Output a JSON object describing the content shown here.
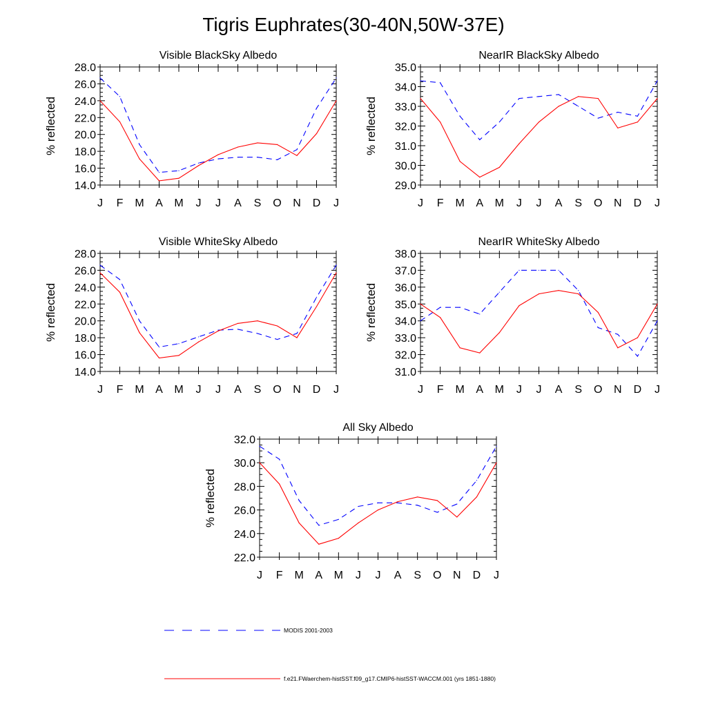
{
  "figure": {
    "title": "Tigris Euphrates(30-40N,50W-37E)"
  },
  "legend": {
    "entries": [
      {
        "label": "MODIS 2001-2003",
        "color": "#0000ff",
        "style": "dashed"
      },
      {
        "label": "f.e21.FWaerchem-histSST.f09_g17.CMIP6-histSST-WACCM.001 (yrs 1851-1880)",
        "color": "#ff0000",
        "style": "solid"
      }
    ]
  },
  "chart_data": [
    {
      "type": "line",
      "title": "Visible BlackSky Albedo",
      "ylabel": "% reflected",
      "xlabel": "",
      "categories": [
        "J",
        "F",
        "M",
        "A",
        "M",
        "J",
        "J",
        "A",
        "S",
        "O",
        "N",
        "D",
        "J"
      ],
      "ylim": [
        14,
        28
      ],
      "yticks": [
        "14.0",
        "16.0",
        "18.0",
        "20.0",
        "22.0",
        "24.0",
        "26.0",
        "28.0"
      ],
      "series": [
        {
          "name": "MODIS 2001-2003",
          "color": "#0000ff",
          "dash": true,
          "values": [
            26.7,
            24.5,
            18.8,
            15.5,
            15.7,
            16.6,
            17.1,
            17.3,
            17.3,
            17.0,
            18.2,
            23.1,
            26.7
          ]
        },
        {
          "name": "f.e21.FWaerchem-histSST.f09_g17.CMIP6-histSST-WACCM.001 (yrs 1851-1880)",
          "color": "#ff0000",
          "dash": false,
          "values": [
            24.0,
            21.5,
            17.1,
            14.5,
            14.8,
            16.3,
            17.6,
            18.5,
            19.0,
            18.8,
            17.5,
            20.1,
            24.0
          ]
        }
      ]
    },
    {
      "type": "line",
      "title": "NearIR BlackSky Albedo",
      "ylabel": "% reflected",
      "xlabel": "",
      "categories": [
        "J",
        "F",
        "M",
        "A",
        "M",
        "J",
        "J",
        "A",
        "S",
        "O",
        "N",
        "D",
        "J"
      ],
      "ylim": [
        29,
        35
      ],
      "yticks": [
        "29.0",
        "30.0",
        "31.0",
        "32.0",
        "33.0",
        "34.0",
        "35.0"
      ],
      "series": [
        {
          "name": "MODIS 2001-2003",
          "color": "#0000ff",
          "dash": true,
          "values": [
            34.3,
            34.2,
            32.5,
            31.3,
            32.2,
            33.4,
            33.5,
            33.6,
            33.0,
            32.4,
            32.7,
            32.5,
            34.3
          ]
        },
        {
          "name": "f.e21.FWaerchem-histSST.f09_g17.CMIP6-histSST-WACCM.001 (yrs 1851-1880)",
          "color": "#ff0000",
          "dash": false,
          "values": [
            33.4,
            32.2,
            30.2,
            29.4,
            29.9,
            31.1,
            32.2,
            33.0,
            33.5,
            33.4,
            31.9,
            32.2,
            33.4
          ]
        }
      ]
    },
    {
      "type": "line",
      "title": "Visible WhiteSky Albedo",
      "ylabel": "% reflected",
      "xlabel": "",
      "categories": [
        "J",
        "F",
        "M",
        "A",
        "M",
        "J",
        "J",
        "A",
        "S",
        "O",
        "N",
        "D",
        "J"
      ],
      "ylim": [
        14,
        28
      ],
      "yticks": [
        "14.0",
        "16.0",
        "18.0",
        "20.0",
        "22.0",
        "24.0",
        "26.0",
        "28.0"
      ],
      "series": [
        {
          "name": "MODIS 2001-2003",
          "color": "#0000ff",
          "dash": true,
          "values": [
            26.6,
            24.9,
            20.0,
            16.9,
            17.3,
            18.1,
            18.9,
            19.0,
            18.5,
            17.8,
            18.5,
            22.8,
            26.6
          ]
        },
        {
          "name": "f.e21.FWaerchem-histSST.f09_g17.CMIP6-histSST-WACCM.001 (yrs 1851-1880)",
          "color": "#ff0000",
          "dash": false,
          "values": [
            25.7,
            23.4,
            18.6,
            15.6,
            15.9,
            17.5,
            18.8,
            19.7,
            20.0,
            19.4,
            18.0,
            21.7,
            25.7
          ]
        }
      ]
    },
    {
      "type": "line",
      "title": "NearIR WhiteSky Albedo",
      "ylabel": "% reflected",
      "xlabel": "",
      "categories": [
        "J",
        "F",
        "M",
        "A",
        "M",
        "J",
        "J",
        "A",
        "S",
        "O",
        "N",
        "D",
        "J"
      ],
      "ylim": [
        31,
        38
      ],
      "yticks": [
        "31.0",
        "32.0",
        "33.0",
        "34.0",
        "35.0",
        "36.0",
        "37.0",
        "38.0"
      ],
      "series": [
        {
          "name": "MODIS 2001-2003",
          "color": "#0000ff",
          "dash": true,
          "values": [
            34.0,
            34.8,
            34.8,
            34.4,
            35.7,
            37.0,
            37.0,
            37.0,
            35.8,
            33.6,
            33.2,
            31.9,
            34.0
          ]
        },
        {
          "name": "f.e21.FWaerchem-histSST.f09_g17.CMIP6-histSST-WACCM.001 (yrs 1851-1880)",
          "color": "#ff0000",
          "dash": false,
          "values": [
            35.0,
            34.2,
            32.4,
            32.1,
            33.3,
            34.9,
            35.6,
            35.8,
            35.6,
            34.5,
            32.4,
            33.0,
            35.0
          ]
        }
      ]
    },
    {
      "type": "line",
      "title": "All Sky Albedo",
      "ylabel": "% reflected",
      "xlabel": "",
      "categories": [
        "J",
        "F",
        "M",
        "A",
        "M",
        "J",
        "J",
        "A",
        "S",
        "O",
        "N",
        "D",
        "J"
      ],
      "ylim": [
        22,
        32
      ],
      "yticks": [
        "22.0",
        "24.0",
        "26.0",
        "28.0",
        "30.0",
        "32.0"
      ],
      "series": [
        {
          "name": "MODIS 2001-2003",
          "color": "#0000ff",
          "dash": true,
          "values": [
            31.4,
            30.3,
            26.8,
            24.7,
            25.2,
            26.3,
            26.6,
            26.6,
            26.4,
            25.8,
            26.5,
            28.5,
            31.4
          ]
        },
        {
          "name": "f.e21.FWaerchem-histSST.f09_g17.CMIP6-histSST-WACCM.001 (yrs 1851-1880)",
          "color": "#ff0000",
          "dash": false,
          "values": [
            30.0,
            28.2,
            24.9,
            23.1,
            23.6,
            24.9,
            26.0,
            26.7,
            27.1,
            26.8,
            25.4,
            27.1,
            30.0
          ]
        }
      ]
    }
  ]
}
